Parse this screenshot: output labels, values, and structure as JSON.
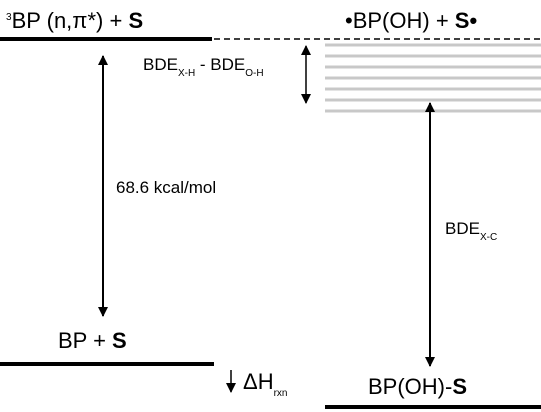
{
  "states": {
    "triplet": {
      "sup": "3",
      "main": "BP (n,π*) + ",
      "bold": "S"
    },
    "radical_pair": {
      "main": "•BP(OH) + ",
      "bold": "S•"
    },
    "ground": {
      "main": "BP + ",
      "bold": "S"
    },
    "product": {
      "main": "BP(OH)-",
      "bold": "S"
    }
  },
  "labels": {
    "bde_diff": {
      "a": "BDE",
      "a_sub": "X-H",
      "mid": " - BDE",
      "b_sub": "O-H"
    },
    "triplet_energy": "68.6 kcal/mol",
    "bde_xc": {
      "main": "BDE",
      "sub": "X-C"
    },
    "dh_rxn": {
      "main": "ΔH",
      "sub": "rxn"
    }
  },
  "colors": {
    "level": "#000000",
    "band": "#c8c8c8"
  }
}
